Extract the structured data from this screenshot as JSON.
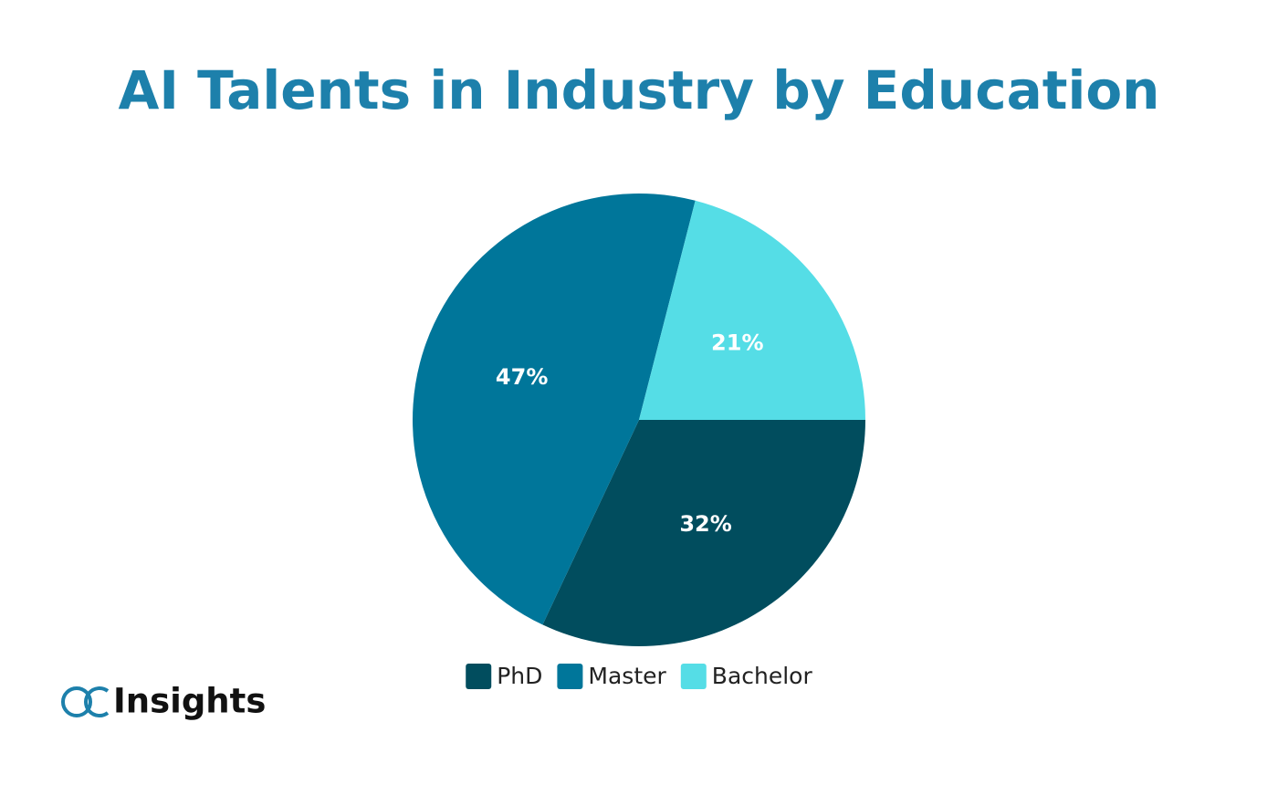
{
  "chart_data": {
    "type": "pie",
    "title": "AI Talents in Industry by Education",
    "categories": [
      "PhD",
      "Master",
      "Bachelor"
    ],
    "values": [
      32,
      47,
      21
    ],
    "value_labels": [
      "32%",
      "47%",
      "21%"
    ],
    "colors": [
      "#014d5e",
      "#00769a",
      "#55dde6"
    ],
    "legend": "bottom"
  },
  "logo": "Insights"
}
